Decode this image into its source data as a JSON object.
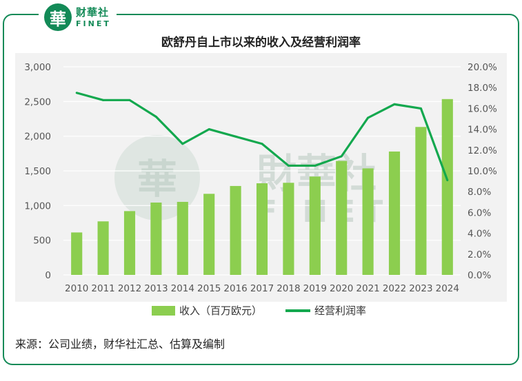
{
  "logo": {
    "mark": "華",
    "name_cn": "财華社",
    "name_en": "FINET"
  },
  "watermark": {
    "mark": "華",
    "name_cn": "財華社",
    "name_en": "FINET"
  },
  "source": "来源：公司业绩，财华社汇总、估算及编制",
  "colors": {
    "bar": "#8cce4f",
    "line": "#13a84e",
    "brand": "#138a57"
  },
  "chart_data": {
    "type": "bar",
    "title": "欧舒丹自上市以来的收入及经营利润率",
    "categories": [
      "2010",
      "2011",
      "2012",
      "2013",
      "2014",
      "2015",
      "2016",
      "2017",
      "2018",
      "2019",
      "2020",
      "2021",
      "2022",
      "2023",
      "2024"
    ],
    "series": [
      {
        "name": "收入（百万欧元）",
        "type": "bar",
        "axis": "left",
        "values": [
          612,
          772,
          920,
          1043,
          1053,
          1169,
          1282,
          1321,
          1328,
          1418,
          1643,
          1536,
          1779,
          2133,
          2535
        ]
      },
      {
        "name": "经营利润率",
        "type": "line",
        "axis": "right",
        "values": [
          17.5,
          16.8,
          16.8,
          15.2,
          12.6,
          14.0,
          13.3,
          12.6,
          10.5,
          10.5,
          11.4,
          15.1,
          16.4,
          16.0,
          9.1
        ]
      }
    ],
    "y_left": {
      "ylim": [
        0,
        3000
      ],
      "ticks": [
        "0",
        "500",
        "1,000",
        "1,500",
        "2,000",
        "2,500",
        "3,000"
      ]
    },
    "y_right": {
      "ylim": [
        0,
        20
      ],
      "ticks": [
        "0.0%",
        "2.0%",
        "4.0%",
        "6.0%",
        "8.0%",
        "10.0%",
        "12.0%",
        "14.0%",
        "16.0%",
        "18.0%",
        "20.0%"
      ]
    },
    "grid": true,
    "legend": "bottom-center"
  }
}
